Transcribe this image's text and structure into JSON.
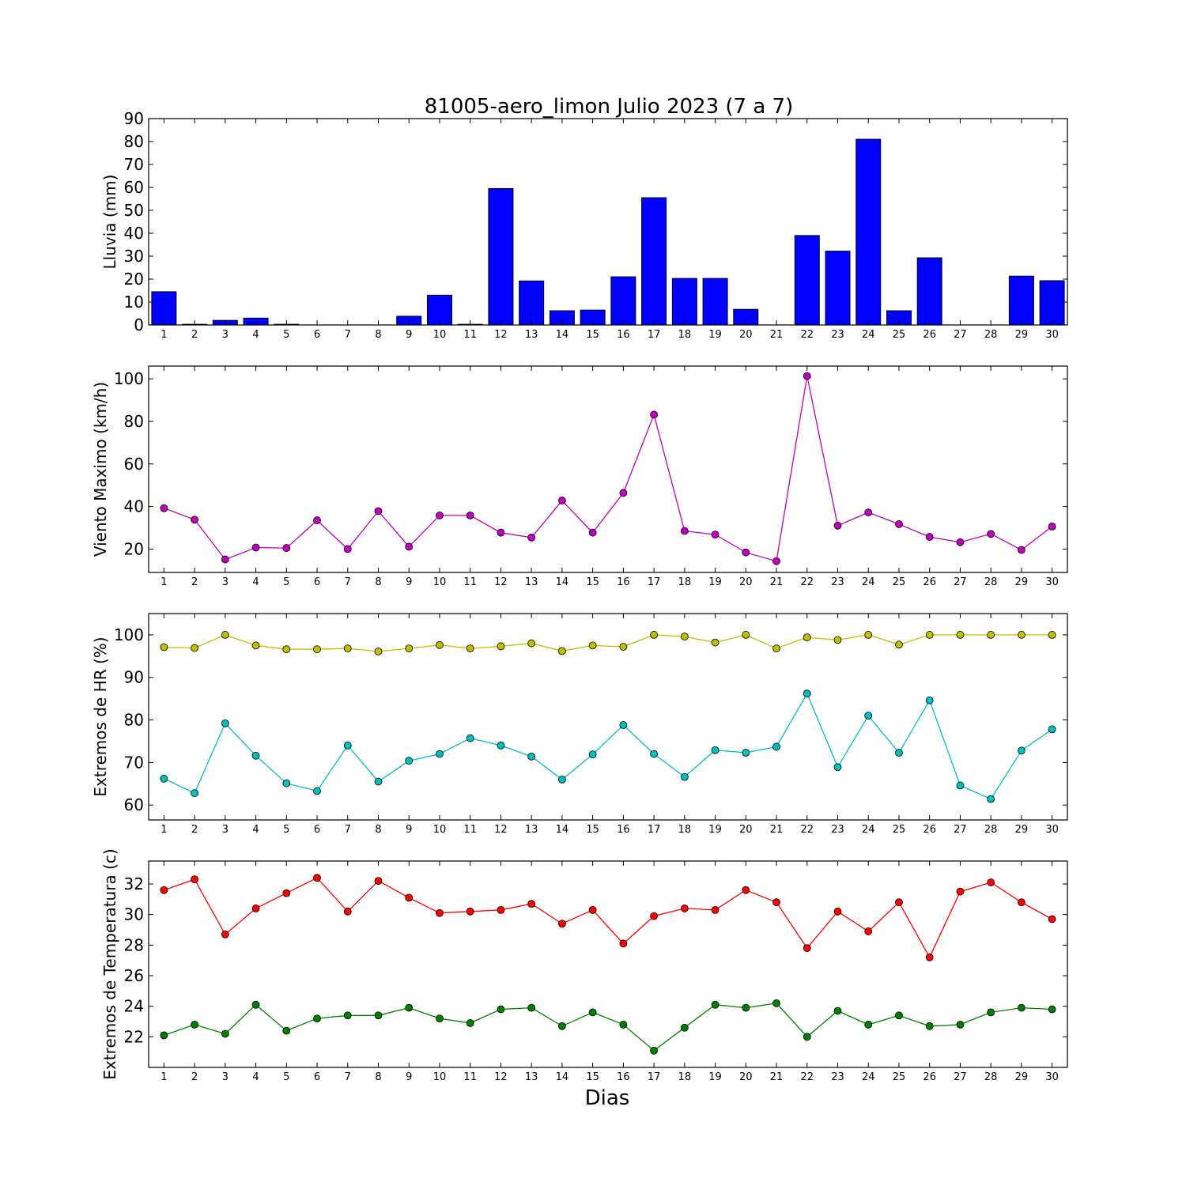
{
  "title": "81005-aero_limon Julio 2023  (7 a 7)",
  "xlabel": "Dias",
  "chart_data": [
    {
      "type": "bar",
      "ylabel": "Lluvia (mm)",
      "ylim": [
        0,
        90
      ],
      "yticks": [
        0,
        10,
        20,
        30,
        40,
        50,
        60,
        70,
        80,
        90
      ],
      "x": [
        1,
        2,
        3,
        4,
        5,
        6,
        7,
        8,
        9,
        10,
        11,
        12,
        13,
        14,
        15,
        16,
        17,
        18,
        19,
        20,
        21,
        22,
        23,
        24,
        25,
        26,
        27,
        28,
        29,
        30
      ],
      "series": [
        {
          "color": "#0000ff",
          "values": [
            14.5,
            0.3,
            2.0,
            3.0,
            0.3,
            0,
            0,
            0,
            3.8,
            13.0,
            0.3,
            59.5,
            19.2,
            6.2,
            6.5,
            21.0,
            55.5,
            20.3,
            20.3,
            6.8,
            0,
            39.0,
            32.2,
            81.0,
            6.2,
            29.3,
            0,
            0,
            21.3,
            19.3
          ]
        }
      ],
      "grid": false
    },
    {
      "type": "line",
      "ylabel": "Viento Maximo (km/h)",
      "ylim": [
        9,
        106
      ],
      "yticks": [
        20,
        40,
        60,
        80,
        100
      ],
      "x": [
        1,
        2,
        3,
        4,
        5,
        6,
        7,
        8,
        9,
        10,
        11,
        12,
        13,
        14,
        15,
        16,
        17,
        18,
        19,
        20,
        21,
        22,
        23,
        24,
        25,
        26,
        27,
        28,
        29,
        30
      ],
      "series": [
        {
          "color": "#bf00bf",
          "values": [
            39.2,
            33.8,
            15.1,
            20.7,
            20.5,
            33.5,
            20.0,
            37.8,
            21.1,
            35.8,
            35.8,
            27.7,
            25.4,
            42.8,
            27.7,
            46.4,
            83.2,
            28.5,
            26.8,
            18.4,
            14.3,
            101.3,
            31.0,
            37.2,
            31.7,
            25.7,
            23.2,
            27.1,
            19.6,
            30.6
          ]
        }
      ],
      "grid": false
    },
    {
      "type": "line",
      "ylabel": "Extremos de HR (%)",
      "ylim": [
        56.5,
        105
      ],
      "yticks": [
        60,
        70,
        80,
        90,
        100
      ],
      "x": [
        1,
        2,
        3,
        4,
        5,
        6,
        7,
        8,
        9,
        10,
        11,
        12,
        13,
        14,
        15,
        16,
        17,
        18,
        19,
        20,
        21,
        22,
        23,
        24,
        25,
        26,
        27,
        28,
        29,
        30
      ],
      "series": [
        {
          "color": "#bfbf00",
          "values": [
            97.1,
            96.9,
            100,
            97.5,
            96.6,
            96.6,
            96.8,
            96.1,
            96.8,
            97.6,
            96.8,
            97.3,
            98.0,
            96.2,
            97.5,
            97.2,
            100,
            99.6,
            98.2,
            100,
            96.8,
            99.4,
            98.8,
            100,
            97.7,
            100,
            100,
            100,
            100,
            100
          ]
        },
        {
          "color": "#00bfbf",
          "values": [
            66.2,
            62.8,
            79.2,
            71.6,
            65.1,
            63.3,
            74.0,
            65.5,
            70.4,
            72.0,
            75.7,
            74.0,
            71.4,
            66.0,
            71.9,
            78.8,
            72.0,
            66.6,
            72.9,
            72.3,
            73.7,
            86.2,
            68.9,
            81.0,
            72.3,
            84.6,
            64.6,
            61.4,
            72.8,
            77.8
          ]
        }
      ],
      "grid": false
    },
    {
      "type": "line",
      "ylabel": "Extremos de Temperatura (c)",
      "ylim": [
        20.0,
        33.5
      ],
      "yticks": [
        22,
        24,
        26,
        28,
        30,
        32
      ],
      "x": [
        1,
        2,
        3,
        4,
        5,
        6,
        7,
        8,
        9,
        10,
        11,
        12,
        13,
        14,
        15,
        16,
        17,
        18,
        19,
        20,
        21,
        22,
        23,
        24,
        25,
        26,
        27,
        28,
        29,
        30
      ],
      "series": [
        {
          "color": "#ff0000",
          "values": [
            31.6,
            32.3,
            28.7,
            30.4,
            31.4,
            32.4,
            30.2,
            32.2,
            31.1,
            30.1,
            30.2,
            30.3,
            30.7,
            29.4,
            30.3,
            28.1,
            29.9,
            30.4,
            30.3,
            31.6,
            30.8,
            27.8,
            30.2,
            28.9,
            30.8,
            27.2,
            31.5,
            32.1,
            30.8,
            29.7
          ]
        },
        {
          "color": "#008000",
          "values": [
            22.1,
            22.8,
            22.2,
            24.1,
            22.4,
            23.2,
            23.4,
            23.4,
            23.9,
            23.2,
            22.9,
            23.8,
            23.9,
            22.7,
            23.6,
            22.8,
            21.1,
            22.6,
            24.1,
            23.9,
            24.2,
            22.0,
            23.7,
            22.8,
            23.4,
            22.7,
            22.8,
            23.6,
            23.9,
            23.8
          ]
        }
      ],
      "grid": false
    }
  ]
}
